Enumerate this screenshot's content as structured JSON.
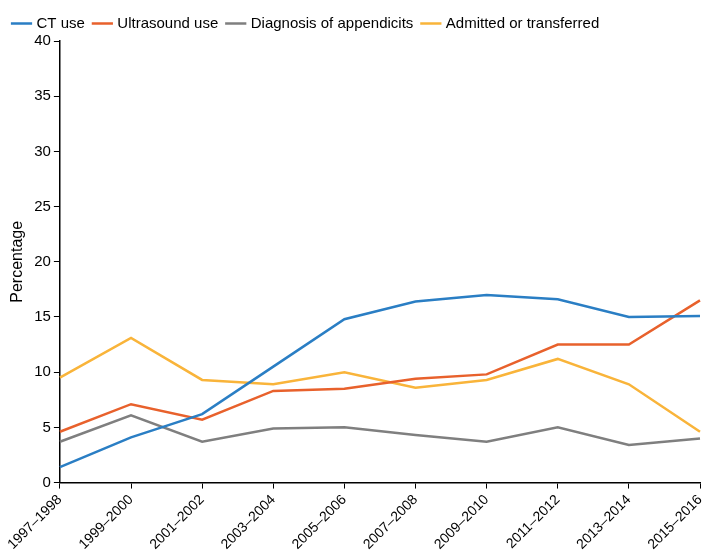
{
  "chart_data": {
    "type": "line",
    "y_label": "Percentage",
    "categories": [
      "1997–1998",
      "1999–2000",
      "2001–2002",
      "2003–2004",
      "2005–2006",
      "2007–2008",
      "2009–2010",
      "2011–2012",
      "2013–2014",
      "2015–2016"
    ],
    "series": [
      {
        "name": "CT use",
        "color": "#2a7ec4",
        "values": [
          1.4,
          4.1,
          6.2,
          10.5,
          14.8,
          16.4,
          17.0,
          16.6,
          15.0,
          15.1
        ]
      },
      {
        "name": "Ultrasound use",
        "color": "#e8612c",
        "values": [
          4.6,
          7.1,
          5.7,
          8.3,
          8.5,
          9.4,
          9.8,
          12.5,
          12.5,
          16.5
        ]
      },
      {
        "name": "Diagnosis of appendicits",
        "color": "#7f7f7f",
        "values": [
          3.7,
          6.1,
          3.7,
          4.9,
          5.0,
          4.3,
          3.7,
          5.0,
          3.4,
          4.0
        ]
      },
      {
        "name": "Admitted or transferred",
        "color": "#f9b43a",
        "values": [
          9.5,
          13.1,
          9.3,
          8.9,
          10.0,
          8.6,
          9.3,
          11.2,
          8.9,
          4.6
        ]
      }
    ],
    "ylim": [
      0,
      40
    ],
    "yticks": [
      0,
      5,
      10,
      15,
      20,
      25,
      30,
      35,
      40
    ],
    "grid": false,
    "legend": "upper left"
  }
}
